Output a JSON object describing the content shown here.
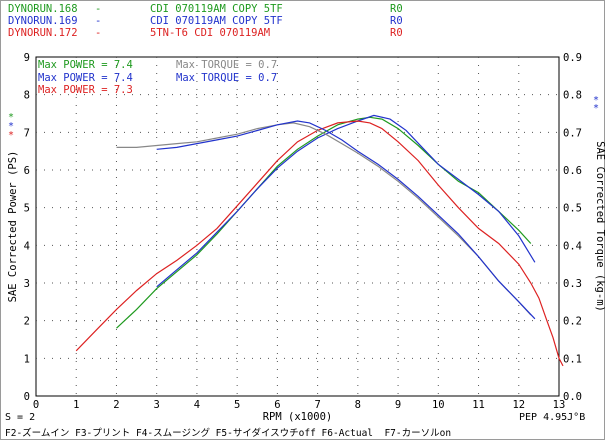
{
  "runs": [
    {
      "name": "DYNORUN.168",
      "dash": "-",
      "desc": "CDI 070119AM COPY 5TF",
      "code": "R0",
      "color": "#1f9a1f"
    },
    {
      "name": "DYNORUN.169",
      "dash": "-",
      "desc": "CDI 070119AM COPY 5TF",
      "code": "R0",
      "color": "#2233cc"
    },
    {
      "name": "DYNORUN.172",
      "dash": "-",
      "desc": "5TN-T6 CDI 070119AM",
      "code": "R0",
      "color": "#dd2222"
    }
  ],
  "max_labels": [
    {
      "text": "Max POWER =  7.4",
      "color": "#1f9a1f"
    },
    {
      "text": "Max POWER =  7.4",
      "color": "#2233cc"
    },
    {
      "text": "Max POWER =  7.3",
      "color": "#dd2222"
    },
    {
      "text": "Max TORQUE =  0.7",
      "color": "#888888"
    },
    {
      "text": "Max TORQUE =  0.7",
      "color": "#2233cc"
    }
  ],
  "markers": [
    "*",
    "*",
    "*"
  ],
  "footer": {
    "s_label": "S = 2",
    "pep_label": "PEP 4.95J°B",
    "keys": "F2-ズームイン F3-プリント F4-スムージング F5-サイダイスウチoff F6-Actual  F7-カーソルon"
  },
  "chart_data": {
    "type": "line",
    "xlabel": "RPM (x1000)",
    "ylabel": "SAE Corrected Power (PS)",
    "y2label": "SAE Corrected Torque (kg-m)",
    "xlim": [
      0,
      13
    ],
    "ylim": [
      0,
      9
    ],
    "y2lim": [
      0,
      0.9
    ],
    "x_ticks": [
      0,
      1,
      2,
      3,
      4,
      5,
      6,
      7,
      8,
      9,
      10,
      11,
      12,
      13
    ],
    "y_ticks": [
      0,
      1,
      2,
      3,
      4,
      5,
      6,
      7,
      8,
      9
    ],
    "y2_ticks": [
      "0.0",
      "0.1",
      "0.2",
      "0.3",
      "0.4",
      "0.5",
      "0.6",
      "0.7",
      "0.8",
      "0.9"
    ],
    "grid": true,
    "series": [
      {
        "name": "DYNORUN.168 power",
        "axis": "left",
        "color": "#1f9a1f",
        "x": [
          2.0,
          2.5,
          3.0,
          3.5,
          4.0,
          4.5,
          5.0,
          5.5,
          6.0,
          6.5,
          7.0,
          7.5,
          8.0,
          8.3,
          8.6,
          9.0,
          9.5,
          10.0,
          10.5,
          11.0,
          11.5,
          12.0,
          12.3
        ],
        "y": [
          1.8,
          2.3,
          2.85,
          3.3,
          3.75,
          4.3,
          4.9,
          5.5,
          6.1,
          6.55,
          6.9,
          7.2,
          7.35,
          7.4,
          7.35,
          7.1,
          6.65,
          6.15,
          5.7,
          5.4,
          4.9,
          4.4,
          4.05
        ]
      },
      {
        "name": "DYNORUN.169 power",
        "axis": "left",
        "color": "#2233cc",
        "x": [
          3.0,
          3.5,
          4.0,
          4.5,
          5.0,
          5.5,
          6.0,
          6.5,
          7.0,
          7.5,
          8.0,
          8.4,
          8.8,
          9.2,
          9.6,
          10.0,
          10.5,
          11.0,
          11.5,
          12.0,
          12.4
        ],
        "y": [
          2.9,
          3.35,
          3.8,
          4.35,
          4.9,
          5.5,
          6.05,
          6.5,
          6.85,
          7.1,
          7.3,
          7.45,
          7.35,
          7.05,
          6.6,
          6.15,
          5.75,
          5.35,
          4.9,
          4.25,
          3.55
        ]
      },
      {
        "name": "DYNORUN.172 power",
        "axis": "left",
        "color": "#dd2222",
        "x": [
          1.0,
          1.5,
          2.0,
          2.5,
          3.0,
          3.5,
          4.0,
          4.5,
          5.0,
          5.5,
          6.0,
          6.5,
          7.0,
          7.5,
          8.0,
          8.3,
          8.6,
          9.0,
          9.5,
          10.0,
          10.5,
          11.0,
          11.5,
          12.0,
          12.3,
          12.5,
          12.7,
          12.85,
          13.0,
          13.1
        ],
        "y": [
          1.2,
          1.75,
          2.3,
          2.8,
          3.25,
          3.6,
          4.0,
          4.45,
          5.05,
          5.65,
          6.25,
          6.75,
          7.05,
          7.25,
          7.3,
          7.25,
          7.1,
          6.75,
          6.25,
          5.6,
          5.0,
          4.45,
          4.05,
          3.5,
          3.0,
          2.6,
          2.0,
          1.55,
          1.0,
          0.8
        ]
      },
      {
        "name": "DYNORUN.168 torque",
        "axis": "right",
        "color": "#888888",
        "x": [
          2.0,
          2.5,
          3.0,
          3.5,
          4.0,
          4.5,
          5.0,
          5.5,
          6.0,
          6.4,
          6.8,
          7.2,
          7.6,
          8.0,
          8.5,
          9.0,
          9.5,
          10.0,
          10.5,
          11.0,
          11.5,
          12.0,
          12.3
        ],
        "y": [
          0.66,
          0.66,
          0.665,
          0.67,
          0.675,
          0.685,
          0.695,
          0.71,
          0.72,
          0.725,
          0.715,
          0.695,
          0.67,
          0.645,
          0.61,
          0.57,
          0.525,
          0.475,
          0.425,
          0.37,
          0.305,
          0.25,
          0.215
        ]
      },
      {
        "name": "DYNORUN.169 torque",
        "axis": "right",
        "color": "#2233cc",
        "x": [
          3.0,
          3.5,
          4.0,
          4.5,
          5.0,
          5.5,
          6.0,
          6.5,
          6.8,
          7.2,
          7.6,
          8.0,
          8.5,
          9.0,
          9.5,
          10.0,
          10.5,
          11.0,
          11.5,
          12.0,
          12.4
        ],
        "y": [
          0.655,
          0.66,
          0.67,
          0.68,
          0.69,
          0.705,
          0.72,
          0.73,
          0.725,
          0.705,
          0.68,
          0.65,
          0.615,
          0.575,
          0.53,
          0.48,
          0.43,
          0.37,
          0.305,
          0.25,
          0.205
        ]
      }
    ]
  }
}
